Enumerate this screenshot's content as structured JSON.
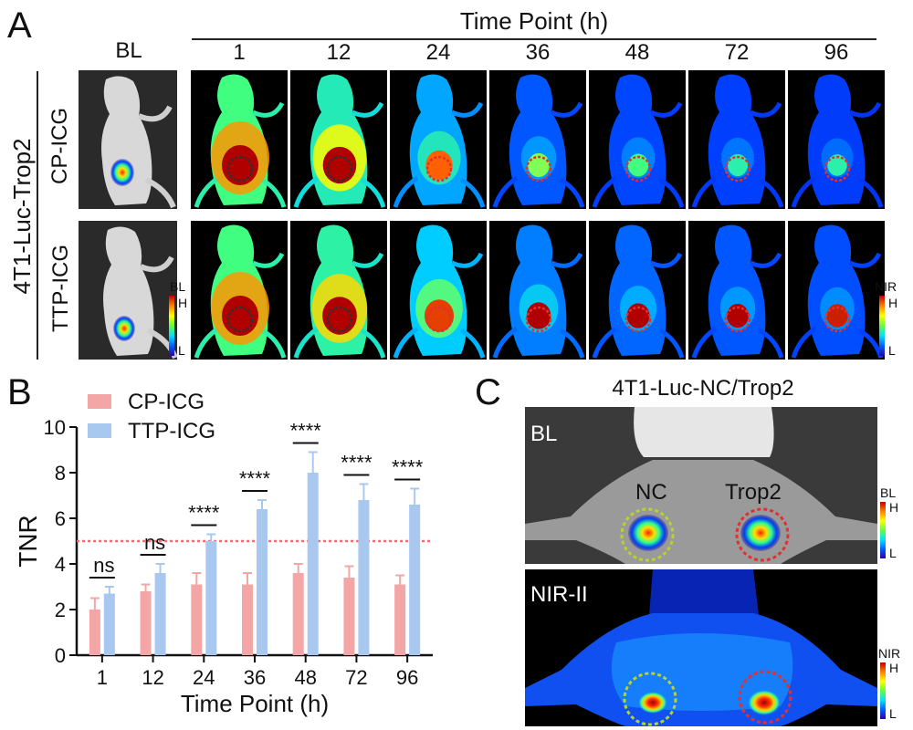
{
  "panels": {
    "a": "A",
    "b": "B",
    "c": "C"
  },
  "panel_a": {
    "time_header": "Time Point (h)",
    "baseline_label": "BL",
    "time_points": [
      "1",
      "12",
      "24",
      "36",
      "48",
      "72",
      "96"
    ],
    "model_label": "4T1-Luc-Trop2",
    "rows": [
      "CP-ICG",
      "TTP-ICG"
    ],
    "bl_scale": {
      "title": "BL",
      "high": "H",
      "low": "L"
    },
    "nir_scale": {
      "title": "NIR",
      "high": "H",
      "low": "L"
    },
    "intensity": {
      "CP-ICG": [
        1.0,
        0.88,
        0.62,
        0.42,
        0.38,
        0.36,
        0.34
      ],
      "TTP-ICG": [
        1.0,
        0.92,
        0.72,
        0.52,
        0.46,
        0.42,
        0.4
      ]
    },
    "tumor_signal": {
      "CP-ICG": [
        1.0,
        1.0,
        0.85,
        0.6,
        0.55,
        0.5,
        0.5
      ],
      "TTP-ICG": [
        1.0,
        1.0,
        0.9,
        1.0,
        1.0,
        1.0,
        0.95
      ]
    }
  },
  "chart_data": {
    "type": "bar",
    "title": "",
    "xlabel": "Time Point (h)",
    "ylabel": "TNR",
    "categories": [
      "1",
      "12",
      "24",
      "36",
      "48",
      "72",
      "96"
    ],
    "series": [
      {
        "name": "CP-ICG",
        "color": "#f4a6a6",
        "values": [
          2.0,
          2.8,
          3.1,
          3.1,
          3.6,
          3.4,
          3.1
        ],
        "errors": [
          0.5,
          0.3,
          0.5,
          0.5,
          0.4,
          0.5,
          0.4
        ]
      },
      {
        "name": "TTP-ICG",
        "color": "#a9c8f0",
        "values": [
          2.7,
          3.6,
          5.0,
          6.4,
          8.0,
          6.8,
          6.6
        ],
        "errors": [
          0.3,
          0.4,
          0.3,
          0.4,
          0.9,
          0.7,
          0.7
        ]
      }
    ],
    "ylim": [
      0,
      10
    ],
    "yticks": [
      "0",
      "2",
      "4",
      "6",
      "8",
      "10"
    ],
    "threshold": 5,
    "threshold_color": "#e8727a",
    "significance": [
      "ns",
      "ns",
      "****",
      "****",
      "****",
      "****",
      "****"
    ],
    "legend_position": "top-left"
  },
  "panel_c": {
    "title": "4T1-Luc-NC/Trop2",
    "top_tag": "BL",
    "bottom_tag": "NIR-II",
    "left_label": "NC",
    "right_label": "Trop2",
    "left_label_color": "#b5d334",
    "right_label_color": "#e03030",
    "bl_scale": {
      "title": "BL",
      "high": "H",
      "low": "L"
    },
    "nir_scale": {
      "title": "NIR",
      "high": "H",
      "low": "L"
    }
  }
}
